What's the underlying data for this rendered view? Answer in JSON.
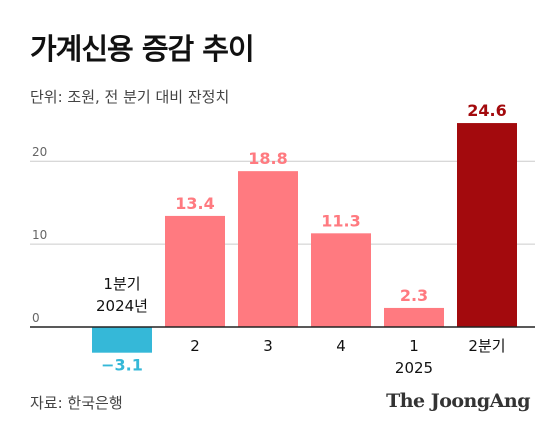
{
  "header": {
    "title": "가계신용 증감 추이",
    "subtitle": "단위: 조원, 전 분기 대비 잔정치"
  },
  "footer": {
    "source": "자료: 한국은행",
    "brand": "The JoongAng"
  },
  "colors": {
    "positive": "#ff7a80",
    "negative": "#35b8d8",
    "highlight": "#a30a0d",
    "grid": "#cccccc",
    "axis": "#222222"
  },
  "chart_data": {
    "type": "bar",
    "categories": [
      "1분기\n2024년",
      "2",
      "3",
      "4",
      "1\n2025",
      "2분기"
    ],
    "values": [
      -3.1,
      13.4,
      18.8,
      11.3,
      2.3,
      24.6
    ],
    "value_labels": [
      "−3.1",
      "13.4",
      "18.8",
      "11.3",
      "2.3",
      "24.6"
    ],
    "yticks": [
      0,
      10,
      20
    ],
    "ylim": [
      -3.5,
      24.6
    ],
    "grid": true,
    "highlight_index": 5
  }
}
